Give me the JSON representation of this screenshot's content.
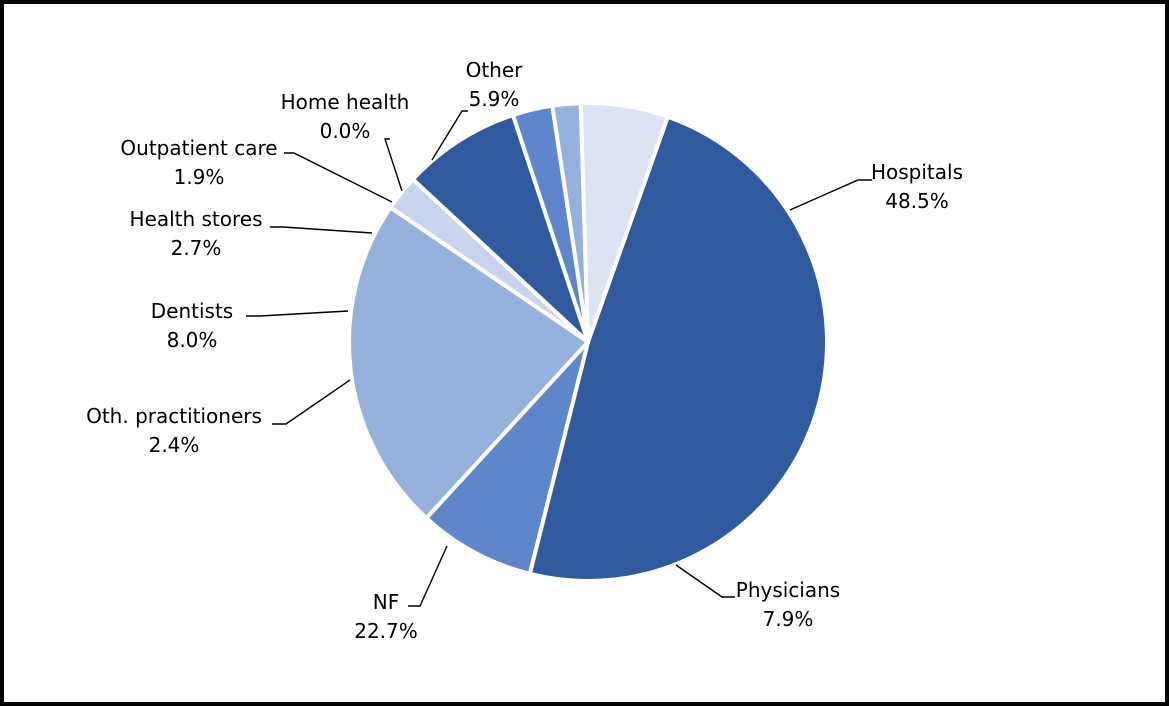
{
  "chart_data": {
    "type": "pie",
    "slices": [
      {
        "label": "Hospitals",
        "value": 48.5,
        "value_label": "48.5%",
        "color": "#31599E"
      },
      {
        "label": "Physicians",
        "value": 7.9,
        "value_label": "7.9%",
        "color": "#5F85CB"
      },
      {
        "label": "NF",
        "value": 22.7,
        "value_label": "22.7%",
        "color": "#97B1DD"
      },
      {
        "label": "Oth. practitioners",
        "value": 2.4,
        "value_label": "2.4%",
        "color": "#C9D5EE"
      },
      {
        "label": "Dentists",
        "value": 8.0,
        "value_label": "8.0%",
        "color": "#31599E"
      },
      {
        "label": "Health stores",
        "value": 2.7,
        "value_label": "2.7%",
        "color": "#5F85CB"
      },
      {
        "label": "Outpatient  care",
        "value": 1.9,
        "value_label": "1.9%",
        "color": "#97B1DD"
      },
      {
        "label": "Home health",
        "value": 0.0,
        "value_label": "0.0%",
        "color": "#C9D5EE"
      },
      {
        "label": "Other",
        "value": 5.9,
        "value_label": "5.9%",
        "color": "#DCE4F4"
      }
    ],
    "start": "Hospitals begins near 12 o'clock and slices proceed clockwise",
    "legend": "none (labels with leader lines)"
  }
}
